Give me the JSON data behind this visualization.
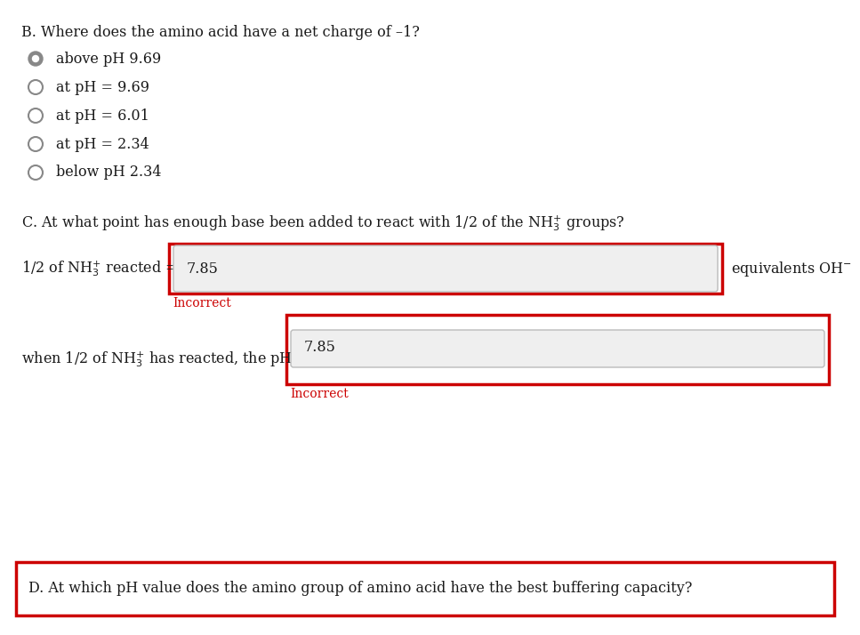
{
  "title_B": "B. Where does the amino acid have a net charge of –1?",
  "radio_options": [
    {
      "label": "above pH 9.69",
      "selected": true
    },
    {
      "label": "at pH = 9.69",
      "selected": false
    },
    {
      "label": "at pH = 6.01",
      "selected": false
    },
    {
      "label": "at pH = 2.34",
      "selected": false
    },
    {
      "label": "below pH 2.34",
      "selected": false
    }
  ],
  "title_C": "C. At what point has enough base been added to react with 1/2 of the NH$_{3}^{+}$ groups?",
  "row1_label": "1/2 of NH$_{3}^{+}$ reacted =",
  "row1_value": "7.85",
  "row1_right": "equivalents OH$^{-}$",
  "row1_incorrect": "Incorrect",
  "row2_label": "when 1/2 of NH$_{3}^{+}$ has reacted, the pH =",
  "row2_value": "7.85",
  "row2_incorrect": "Incorrect",
  "title_D": "D. At which pH value does the amino group of amino acid have the best buffering capacity?",
  "bg_color": "#ffffff",
  "text_color": "#1a1a1a",
  "incorrect_color": "#cc0000",
  "border_color": "#cc0000",
  "input_bg": "#efefef",
  "input_border": "#bbbbbb",
  "radio_fill": "#888888",
  "radio_border": "#888888"
}
